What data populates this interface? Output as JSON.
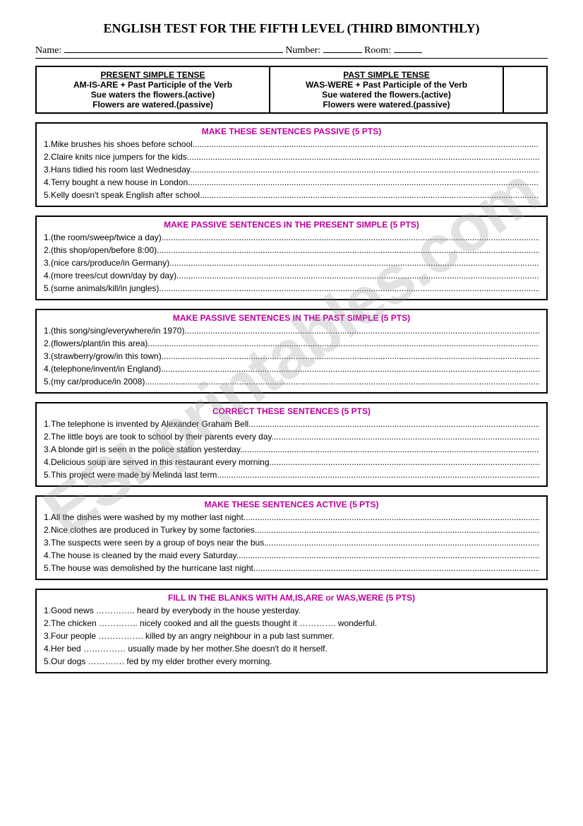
{
  "title": "ENGLISH TEST FOR THE FIFTH LEVEL (THIRD BIMONTHLY)",
  "info": {
    "name_label": "Name:",
    "number_label": "Number:",
    "room_label": "Room:"
  },
  "tense_boxes": {
    "present": {
      "title": "PRESENT SIMPLE TENSE",
      "rule": "AM-IS-ARE + Past Participle of the Verb",
      "ex1": "Sue waters the flowers.(active)",
      "ex2": "Flowers are watered.(passive)"
    },
    "past": {
      "title": "PAST SIMPLE TENSE",
      "rule": "WAS-WERE + Past Participle of the Verb",
      "ex1": "Sue watered the flowers.(active)",
      "ex2": "Flowers were watered.(passive)"
    }
  },
  "sections": [
    {
      "title": "MAKE THESE SENTENCES PASSIVE (5 PTS)",
      "items": [
        "1.Mike brushes his shoes before school",
        "2.Claire knits nice jumpers for the kids",
        "3.Hans tidied his room last Wednesday",
        "4.Terry bought a new house in London",
        "5.Kelly doesn't speak English after school"
      ],
      "dots": true
    },
    {
      "title": "MAKE PASSIVE SENTENCES IN THE PRESENT SIMPLE (5 PTS)",
      "items": [
        "1.(the room/sweep/twice a day)",
        "2.(this shop/open/before 8:00)",
        "3.(nice cars/produce/in Germany)",
        "4.(more trees/cut down/day by day)",
        "5.(some animals/kill/in jungles)"
      ],
      "dots": true
    },
    {
      "title": "MAKE PASSIVE SENTENCES IN THE PAST SIMPLE (5 PTS)",
      "items": [
        "1.(this song/sing/everywhere/in 1970)",
        "2.(flowers/plant/in this area)",
        "3.(strawberry/grow/in this town)",
        "4.(telephone/invent/in England)",
        "5.(my car/produce/in 2008)"
      ],
      "dots": true
    },
    {
      "title": "CORRECT THESE SENTENCES (5 PTS)",
      "items": [
        "1.The telephone is invented by Alexander Graham Bell",
        "2.The little boys are took to school by their parents every day",
        "3.A blonde girl is seen in the police station yesterday",
        "4.Delicious soup are served in this restaurant every morning",
        "5.This project were made by Melinda last term"
      ],
      "dots": true
    },
    {
      "title": "MAKE THESE SENTENCES ACTIVE (5 PTS)",
      "items": [
        "1.All the dishes were washed by my mother last night",
        "2.Nice clothes are produced in Turkey by some factories",
        "3.The suspects were seen by a group of boys near the bus",
        "4.The house is cleaned by the maid every Saturday",
        "5.The house was demolished by the hurricane last night"
      ],
      "dots": true
    },
    {
      "title": "FILL IN THE BLANKS WITH AM,IS,ARE or WAS,WERE (5 PTS)",
      "items": [
        "1.Good news ………….. heard by everybody in the house yesterday.",
        "2.The chicken ………….. nicely cooked and all the guests thought it …………. wonderful.",
        "3.Four people ……………. killed by an angry neighbour in a pub last summer.",
        "4.Her bed …………… usually made by her mother.She doesn't do it herself.",
        "5.Our dogs …………. fed by my elder brother every morning."
      ],
      "dots": false
    }
  ],
  "styling": {
    "title_color": "#c000a0",
    "border_color": "#000000",
    "background": "#ffffff",
    "font_body": "Comic Sans MS",
    "font_heading": "Times New Roman",
    "watermark_text": "ESLprintables.com",
    "watermark_color_rgba": "rgba(150,150,150,0.28)"
  }
}
